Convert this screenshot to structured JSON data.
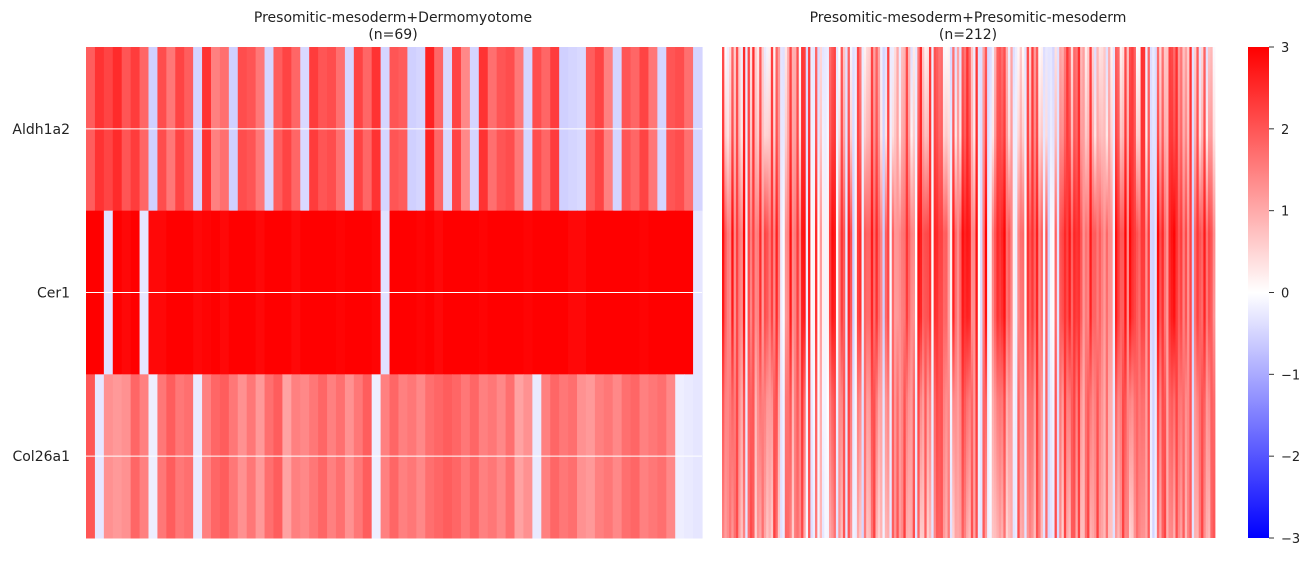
{
  "chart_data": {
    "type": "heatmap",
    "colormap": "bwr",
    "vmin": -3,
    "vmax": 3,
    "colorbar_ticks": [
      3,
      2,
      1,
      0,
      -1,
      -2,
      -3
    ],
    "colorbar_tick_labels": [
      "3",
      "2",
      "1",
      "0",
      "−1",
      "−2",
      "−3"
    ],
    "rows": [
      "Aldh1a2",
      "Cer1",
      "Col26a1"
    ],
    "panels": [
      {
        "title": "Presomitic-mesoderm+Dermomyotome",
        "subtitle": "(n=69)",
        "n_columns": 69,
        "smooth": false,
        "values": [
          [
            1.9,
            2.4,
            2.2,
            2.5,
            2.0,
            2.3,
            1.8,
            -0.55,
            2.1,
            1.6,
            2.2,
            1.9,
            -0.5,
            2.4,
            1.5,
            1.7,
            -0.55,
            2.1,
            2.0,
            1.6,
            -0.5,
            1.9,
            2.2,
            1.8,
            -0.45,
            2.3,
            2.0,
            2.1,
            1.7,
            -0.5,
            2.2,
            1.8,
            2.4,
            -0.5,
            2.0,
            1.9,
            -0.55,
            -0.5,
            2.6,
            1.8,
            -0.45,
            2.2,
            1.4,
            -0.5,
            2.4,
            1.7,
            2.0,
            2.1,
            1.6,
            -0.5,
            2.1,
            1.8,
            2.3,
            -0.55,
            -0.5,
            -0.45,
            1.9,
            2.2,
            1.5,
            -0.5,
            2.0,
            1.8,
            2.2,
            1.6,
            -0.5,
            2.0,
            2.1,
            1.7,
            -0.5
          ],
          [
            3.0,
            3.0,
            -0.35,
            3.0,
            2.9,
            3.0,
            -0.3,
            2.9,
            2.9,
            3.0,
            3.0,
            3.0,
            2.9,
            2.95,
            3.0,
            2.9,
            3.0,
            3.0,
            3.0,
            2.9,
            3.0,
            3.0,
            3.0,
            2.9,
            3.0,
            3.0,
            3.0,
            3.0,
            2.95,
            3.0,
            3.0,
            3.0,
            2.95,
            -0.35,
            3.0,
            3.0,
            3.0,
            2.95,
            3.0,
            2.9,
            3.0,
            3.0,
            3.0,
            3.0,
            2.95,
            3.0,
            3.0,
            3.0,
            3.0,
            2.95,
            3.0,
            3.0,
            3.0,
            3.0,
            2.9,
            2.9,
            3.0,
            3.0,
            3.0,
            3.0,
            3.0,
            3.0,
            2.95,
            3.0,
            3.0,
            3.0,
            3.0,
            3.0,
            -0.3
          ],
          [
            2.0,
            -0.3,
            1.3,
            1.2,
            1.3,
            1.8,
            1.5,
            -0.2,
            1.6,
            1.9,
            1.6,
            1.7,
            -0.25,
            1.5,
            1.8,
            1.9,
            1.6,
            1.3,
            1.6,
            1.2,
            1.7,
            1.9,
            1.1,
            1.5,
            1.4,
            1.6,
            1.8,
            1.5,
            1.7,
            1.3,
            1.6,
            1.9,
            -0.2,
            1.5,
            1.8,
            1.5,
            1.6,
            1.4,
            1.7,
            1.8,
            1.9,
            1.8,
            1.6,
            1.8,
            1.5,
            1.6,
            1.4,
            1.7,
            1.1,
            1.3,
            -0.25,
            1.5,
            1.8,
            1.6,
            1.7,
            1.3,
            1.2,
            1.5,
            1.6,
            1.4,
            1.7,
            1.8,
            1.5,
            1.6,
            1.7,
            1.4,
            -0.2,
            -0.25,
            -0.3
          ]
        ]
      },
      {
        "title": "Presomitic-mesoderm+Presomitic-mesoderm",
        "subtitle": "(n=212)",
        "n_columns": 212,
        "smooth": true,
        "values": [],
        "value_range_note": ""
      }
    ]
  }
}
